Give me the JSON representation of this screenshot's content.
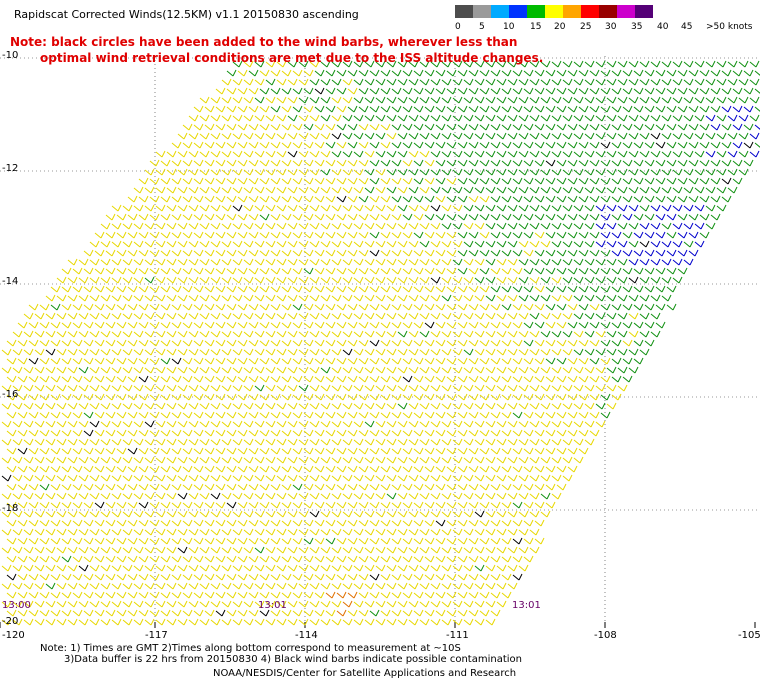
{
  "header": {
    "title": "Rapidscat Corrected Winds(12.5KM) v1.1 20150830 ascending",
    "note_line1": "Note: black circles have been added to the wind barbs, wherever less than",
    "note_line2": "optimal wind retrieval conditions are met due to the ISS altitude changes."
  },
  "legend": {
    "labels": [
      "0",
      "5",
      "10",
      "15",
      "20",
      "25",
      "30",
      "35",
      "40",
      "45",
      ">50 knots"
    ],
    "colors": [
      "#4d4d4d",
      "#9a9a9a",
      "#00aaff",
      "#0033ff",
      "#00bb00",
      "#ffff00",
      "#ffa500",
      "#ff0000",
      "#990000",
      "#cc00cc",
      "#550077"
    ]
  },
  "axes": {
    "lat_labels": [
      "-10",
      "-12",
      "-14",
      "-16",
      "-18",
      "-20"
    ],
    "lon_labels": [
      "-120",
      "-117",
      "-114",
      "-111",
      "-108",
      "-105"
    ]
  },
  "time_labels": [
    "13:00",
    "13:01",
    "13:01"
  ],
  "footer": {
    "line1": "Note: 1) Times are GMT 2)Times along bottom correspond to measurement at ~10S",
    "line2": "3)Data buffer is 22 hrs from 20150830 4) Black wind barbs indicate possible contamination",
    "line3": "NOAA/NESDIS/Center for Satellite Applications and Research"
  },
  "palette": {
    "yellow": "#e8d800",
    "green": "#109010",
    "blue": "#0000cc",
    "black": "#000000",
    "orange": "#e07000"
  }
}
